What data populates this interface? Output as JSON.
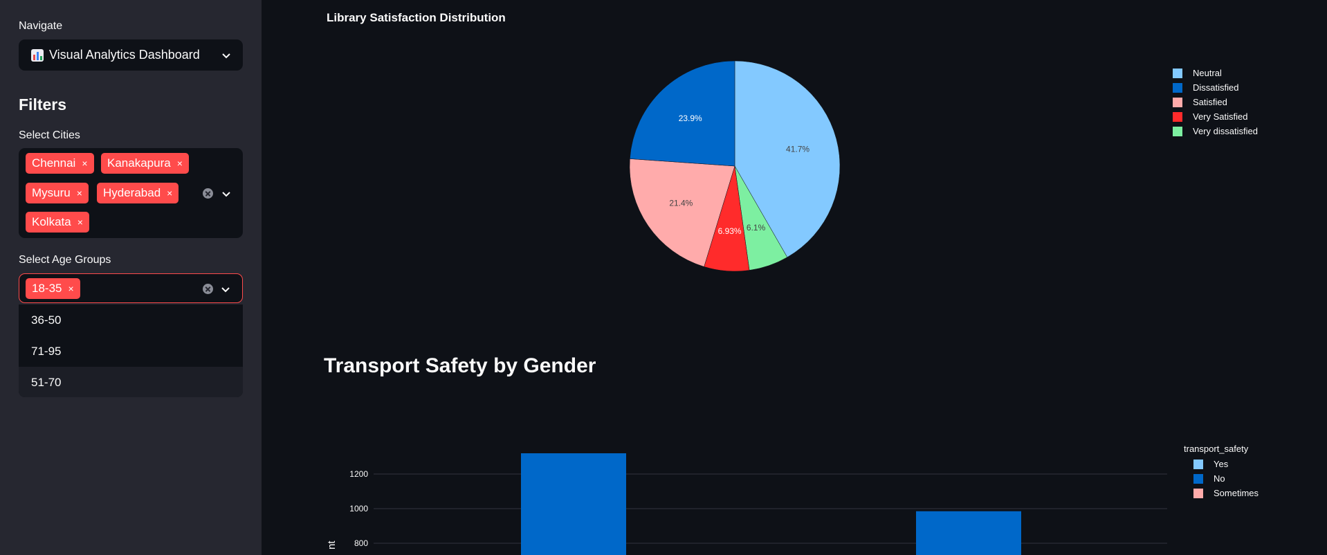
{
  "sidebar": {
    "navigate_label": "Navigate",
    "nav_selected": "Visual Analytics Dashboard",
    "filters_heading": "Filters",
    "cities_label": "Select Cities",
    "cities": [
      "Chennai",
      "Kanakapura",
      "Mysuru",
      "Hyderabad",
      "Kolkata"
    ],
    "age_label": "Select Age Groups",
    "ages_selected": [
      "18-35"
    ],
    "age_options": [
      "36-50",
      "71-95",
      "51-70"
    ],
    "tag_close": "×"
  },
  "charts": {
    "pie_title": "Library Satisfaction Distribution",
    "bar_heading": "Transport Safety by Gender",
    "bar_legend_title": "transport_safety",
    "bar_ylabel": "nt"
  },
  "chart_data": [
    {
      "type": "pie",
      "title": "Library Satisfaction Distribution",
      "labels": [
        "Neutral",
        "Very dissatisfied",
        "Very Satisfied",
        "Satisfied",
        "Dissatisfied"
      ],
      "values": [
        41.7,
        6.1,
        6.93,
        21.4,
        23.9
      ],
      "value_labels": [
        "41.7%",
        "6.1%",
        "6.93%",
        "21.4%",
        "23.9%"
      ],
      "colors": [
        "#83c9ff",
        "#7defa1",
        "#ff2b2b",
        "#ffabab",
        "#0068c9"
      ],
      "legend": [
        "Neutral",
        "Dissatisfied",
        "Satisfied",
        "Very Satisfied",
        "Very dissatisfied"
      ],
      "legend_colors": [
        "#83c9ff",
        "#0068c9",
        "#ffabab",
        "#ff2b2b",
        "#7defa1"
      ],
      "legend_placement": "top-right"
    },
    {
      "type": "bar",
      "title": "Transport Safety by Gender",
      "series": [
        {
          "name": "No",
          "values": [
            1320,
            985
          ]
        }
      ],
      "legend": [
        "Yes",
        "No",
        "Sometimes"
      ],
      "legend_colors": [
        "#83c9ff",
        "#0068c9",
        "#ffabab"
      ],
      "yticks": [
        "1200",
        "1000",
        "800"
      ],
      "ytick_values": [
        1200,
        1000,
        800
      ],
      "grid": true,
      "legend_placement": "top-right"
    }
  ]
}
